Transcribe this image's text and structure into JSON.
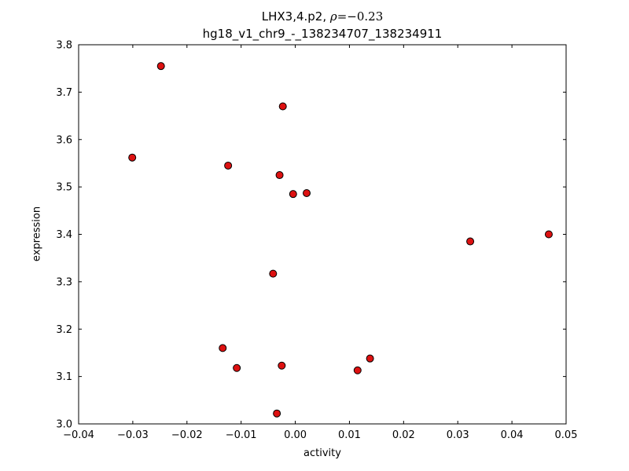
{
  "figure": {
    "title_prefix": "LHX3,4.p2, ",
    "title_rho": "ρ",
    "title_rho_value": "=−0.23",
    "subtitle": "hg18_v1_chr9_-_138234707_138234911",
    "xlabel": "activity",
    "ylabel": "expression"
  },
  "chart_data": {
    "type": "scatter",
    "title": "LHX3,4.p2, ρ=−0.23",
    "subtitle": "hg18_v1_chr9_-_138234707_138234911",
    "xlabel": "activity",
    "ylabel": "expression",
    "correlation_rho": -0.23,
    "xlim": [
      -0.04,
      0.05
    ],
    "ylim": [
      3.0,
      3.8
    ],
    "xticks": [
      -0.04,
      -0.03,
      -0.02,
      -0.01,
      0,
      0.01,
      0.02,
      0.03,
      0.04,
      0.05
    ],
    "yticks": [
      3.0,
      3.1,
      3.2,
      3.3,
      3.4,
      3.5,
      3.6,
      3.7,
      3.8
    ],
    "grid": false,
    "legend": "none",
    "marker": {
      "fill": "#dd1111",
      "edge": "#000000",
      "radius": 4.5
    },
    "points": [
      {
        "x": -0.0301,
        "y": 3.562
      },
      {
        "x": -0.0248,
        "y": 3.755
      },
      {
        "x": -0.0134,
        "y": 3.16
      },
      {
        "x": -0.0124,
        "y": 3.545
      },
      {
        "x": -0.0108,
        "y": 3.118
      },
      {
        "x": -0.0041,
        "y": 3.317
      },
      {
        "x": -0.0034,
        "y": 3.022
      },
      {
        "x": -0.0029,
        "y": 3.525
      },
      {
        "x": -0.0025,
        "y": 3.123
      },
      {
        "x": -0.0023,
        "y": 3.67
      },
      {
        "x": -0.0004,
        "y": 3.485
      },
      {
        "x": 0.0021,
        "y": 3.487
      },
      {
        "x": 0.0115,
        "y": 3.113
      },
      {
        "x": 0.0138,
        "y": 3.138
      },
      {
        "x": 0.0323,
        "y": 3.385
      },
      {
        "x": 0.0468,
        "y": 3.4
      }
    ]
  }
}
